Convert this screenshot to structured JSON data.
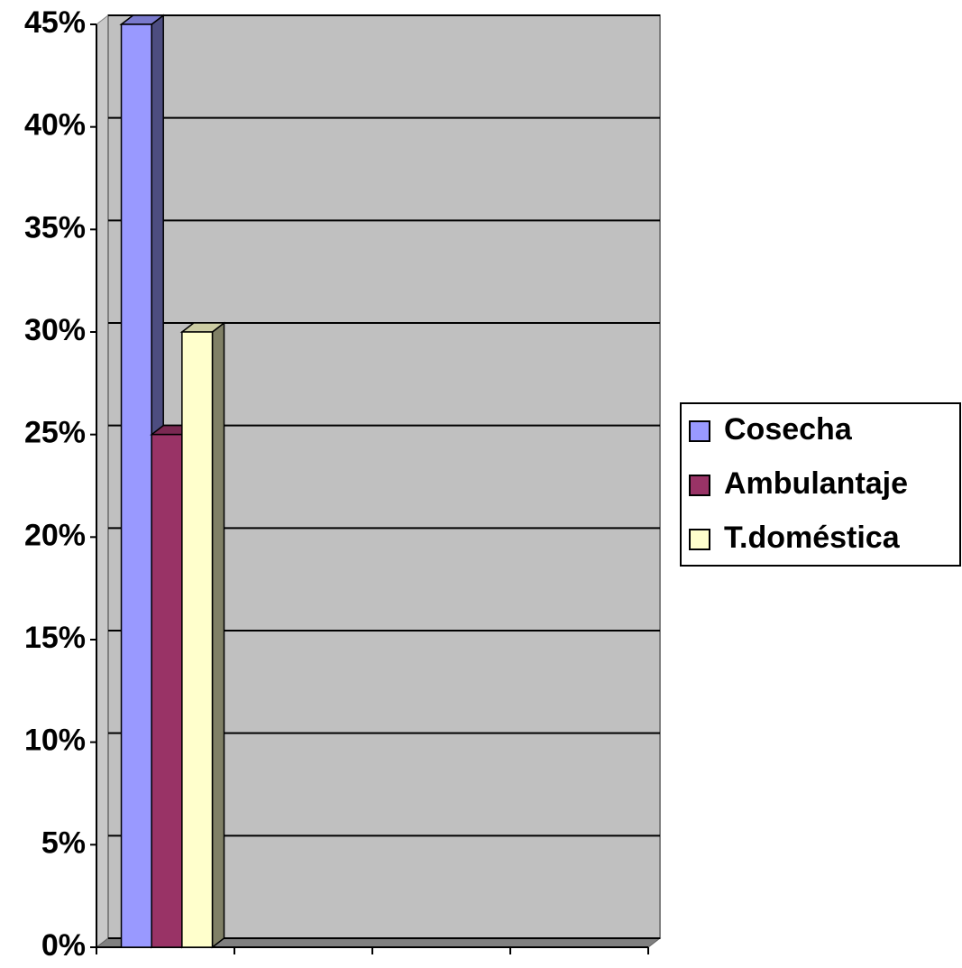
{
  "chart_data": {
    "type": "bar",
    "categories": [
      null,
      null,
      null,
      null
    ],
    "series": [
      {
        "name": "Cosecha",
        "color": "#9999ff",
        "values": [
          45,
          null,
          null,
          null
        ]
      },
      {
        "name": "Ambulantaje",
        "color": "#993366",
        "values": [
          25,
          null,
          null,
          null
        ]
      },
      {
        "name": "T.doméstica",
        "color": "#ffffcc",
        "values": [
          30,
          null,
          null,
          null
        ]
      }
    ],
    "ylim": [
      0,
      45
    ],
    "yticks": [
      {
        "value": 0,
        "label": "0%"
      },
      {
        "value": 5,
        "label": "5%"
      },
      {
        "value": 10,
        "label": "10%"
      },
      {
        "value": 15,
        "label": "15%"
      },
      {
        "value": 20,
        "label": "20%"
      },
      {
        "value": 25,
        "label": "25%"
      },
      {
        "value": 30,
        "label": "30%"
      },
      {
        "value": 35,
        "label": "35%"
      },
      {
        "value": 40,
        "label": "40%"
      },
      {
        "value": 45,
        "label": "45%"
      }
    ],
    "grid": true,
    "legend": "right"
  }
}
